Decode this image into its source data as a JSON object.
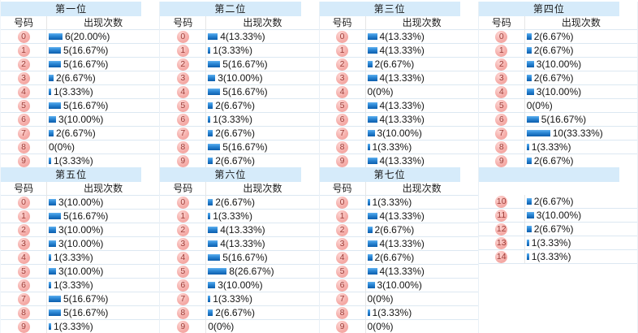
{
  "labels": {
    "number_col": "号码",
    "count_col": "出现次数"
  },
  "colors": {
    "title_band_bg": "#d6ebfa",
    "bar_blue_top": "#61b1ef",
    "bar_blue_bottom": "#0b5dad",
    "badge_pink_bg": "#f5aba7",
    "badge_text_red": "#9e3d38",
    "row_border": "#dce8f2"
  },
  "chart_data": {
    "type": "bar",
    "title": "",
    "xlabel": "号码",
    "ylabel": "出现次数",
    "legend": "none",
    "grid": "table-rows",
    "panels": [
      {
        "title": "第一位",
        "show_header": true,
        "categories": [
          0,
          1,
          2,
          3,
          4,
          5,
          6,
          7,
          8,
          9
        ],
        "values": [
          6,
          5,
          5,
          2,
          1,
          5,
          3,
          2,
          0,
          1
        ],
        "labels": [
          "6(20.00%)",
          "5(16.67%)",
          "5(16.67%)",
          "2(6.67%)",
          "1(3.33%)",
          "5(16.67%)",
          "3(10.00%)",
          "2(6.67%)",
          "0(0%)",
          "1(3.33%)"
        ]
      },
      {
        "title": "第二位",
        "show_header": true,
        "categories": [
          0,
          1,
          2,
          3,
          4,
          5,
          6,
          7,
          8,
          9
        ],
        "values": [
          4,
          1,
          5,
          3,
          5,
          2,
          1,
          2,
          5,
          2
        ],
        "labels": [
          "4(13.33%)",
          "1(3.33%)",
          "5(16.67%)",
          "3(10.00%)",
          "5(16.67%)",
          "2(6.67%)",
          "1(3.33%)",
          "2(6.67%)",
          "5(16.67%)",
          "2(6.67%)"
        ]
      },
      {
        "title": "第三位",
        "show_header": true,
        "categories": [
          0,
          1,
          2,
          3,
          4,
          5,
          6,
          7,
          8,
          9
        ],
        "values": [
          4,
          4,
          2,
          4,
          0,
          4,
          4,
          3,
          1,
          4
        ],
        "labels": [
          "4(13.33%)",
          "4(13.33%)",
          "2(6.67%)",
          "4(13.33%)",
          "0(0%)",
          "4(13.33%)",
          "4(13.33%)",
          "3(10.00%)",
          "1(3.33%)",
          "4(13.33%)"
        ]
      },
      {
        "title": "第四位",
        "show_header": true,
        "categories": [
          0,
          1,
          2,
          3,
          4,
          5,
          6,
          7,
          8,
          9
        ],
        "values": [
          2,
          2,
          3,
          2,
          3,
          0,
          5,
          10,
          1,
          2
        ],
        "labels": [
          "2(6.67%)",
          "2(6.67%)",
          "3(10.00%)",
          "2(6.67%)",
          "3(10.00%)",
          "0(0%)",
          "5(16.67%)",
          "10(33.33%)",
          "1(3.33%)",
          "2(6.67%)"
        ]
      },
      {
        "title": "第五位",
        "show_header": true,
        "categories": [
          0,
          1,
          2,
          3,
          4,
          5,
          6,
          7,
          8,
          9
        ],
        "values": [
          3,
          5,
          3,
          3,
          1,
          3,
          1,
          5,
          5,
          1
        ],
        "labels": [
          "3(10.00%)",
          "5(16.67%)",
          "3(10.00%)",
          "3(10.00%)",
          "1(3.33%)",
          "3(10.00%)",
          "1(3.33%)",
          "5(16.67%)",
          "5(16.67%)",
          "1(3.33%)"
        ]
      },
      {
        "title": "第六位",
        "show_header": true,
        "categories": [
          0,
          1,
          2,
          3,
          4,
          5,
          6,
          7,
          8,
          9
        ],
        "values": [
          2,
          1,
          4,
          4,
          5,
          8,
          3,
          1,
          2,
          0
        ],
        "labels": [
          "2(6.67%)",
          "1(3.33%)",
          "4(13.33%)",
          "4(13.33%)",
          "5(16.67%)",
          "8(26.67%)",
          "3(10.00%)",
          "1(3.33%)",
          "2(6.67%)",
          "0(0%)"
        ]
      },
      {
        "title": "第七位",
        "show_header": true,
        "categories": [
          0,
          1,
          2,
          3,
          4,
          5,
          6,
          7,
          8,
          9
        ],
        "values": [
          1,
          4,
          2,
          4,
          2,
          4,
          3,
          0,
          1,
          0
        ],
        "labels": [
          "1(3.33%)",
          "4(13.33%)",
          "2(6.67%)",
          "4(13.33%)",
          "2(6.67%)",
          "4(13.33%)",
          "3(10.00%)",
          "0(0%)",
          "1(3.33%)",
          "0(0%)"
        ]
      },
      {
        "title": "",
        "show_header": false,
        "categories": [
          10,
          11,
          12,
          13,
          14
        ],
        "values": [
          2,
          3,
          2,
          1,
          1
        ],
        "labels": [
          "2(6.67%)",
          "3(10.00%)",
          "2(6.67%)",
          "1(3.33%)",
          "1(3.33%)"
        ]
      }
    ]
  }
}
